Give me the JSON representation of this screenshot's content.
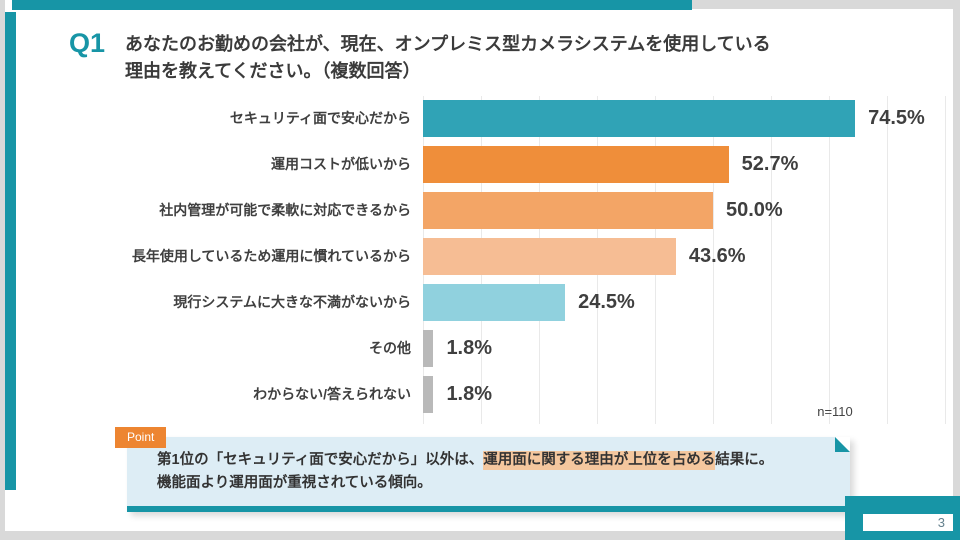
{
  "slide": {
    "question_tag": "Q1",
    "title_line1": "あなたのお勤めの会社が、現在、オンプレミス型カメラシステムを使用している",
    "title_line2": "理由を教えてください。（複数回答）",
    "sample_size": "n=110",
    "page_number": "3"
  },
  "colors": {
    "accent_teal": "#1795a6",
    "bar_teal": "#30a3b6",
    "orange_strong": "#ef8e3a",
    "orange_mid": "#f3a566",
    "orange_light": "#f6bd94",
    "light_blue": "#90d1de",
    "gray_bar": "#b9b9b9",
    "point_tab_orange": "#ed8531",
    "point_box_bg": "#ddedf5",
    "highlight_peach": "#f4c79e"
  },
  "chart_data": {
    "type": "bar",
    "orientation": "horizontal",
    "title": "",
    "xlabel": "",
    "ylabel": "",
    "xlim": [
      0,
      90
    ],
    "gridline_step_percent": 10,
    "grid": true,
    "legend": false,
    "sample_size": "n=110",
    "categories": [
      "セキュリティ面で安心だから",
      "運用コストが低いから",
      "社内管理が可能で柔軟に対応できるから",
      "長年使用しているため運用に慣れているから",
      "現行システムに大きな不満がないから",
      "その他",
      "わからない/答えられない"
    ],
    "values": [
      74.5,
      52.7,
      50.0,
      43.6,
      24.5,
      1.8,
      1.8
    ],
    "value_labels": [
      "74.5%",
      "52.7%",
      "50.0%",
      "43.6%",
      "24.5%",
      "1.8%",
      "1.8%"
    ],
    "bar_colors": [
      "#30a3b6",
      "#ef8e3a",
      "#f3a566",
      "#f6bd94",
      "#90d1de",
      "#b9b9b9",
      "#b9b9b9"
    ]
  },
  "point": {
    "label": "Point",
    "line1_prefix": "第1位の「セキュリティ面で安心だから」以外は、",
    "line1_highlight": "運用面に関する理由が上位を占める",
    "line1_suffix": "結果に。",
    "line2": "機能面より運用面が重視されている傾向。"
  }
}
